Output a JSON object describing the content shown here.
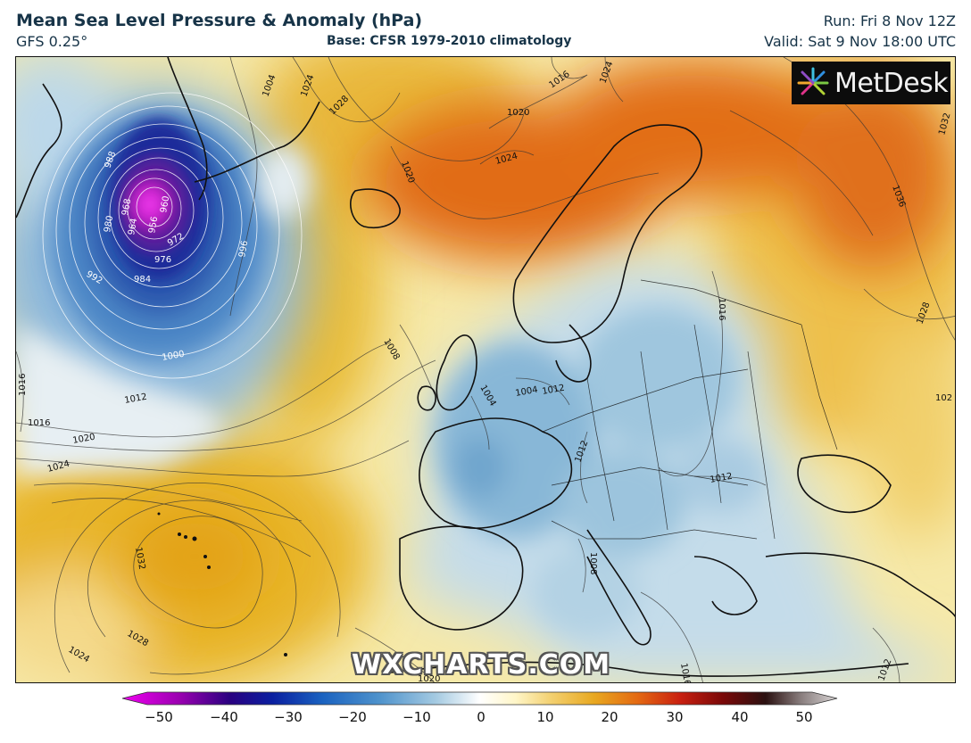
{
  "header": {
    "title": "Mean Sea Level Pressure & Anomaly (hPa)",
    "model": "GFS 0.25°",
    "base": "Base: CFSR 1979-2010 climatology",
    "run": "Run: Fri 8 Nov 12Z",
    "valid": "Valid: Sat 9 Nov 18:00 UTC"
  },
  "branding": {
    "logo_text": "MetDesk",
    "watermark": "WXCHARTS.COM"
  },
  "isobar_labels": {
    "l1004a": "1004",
    "l1024a": "1024",
    "l1028a": "1028",
    "l1016a": "1016",
    "l1024b": "1024",
    "l1032a": "1032",
    "l1020a": "1020",
    "l1024c": "1024",
    "l1020b": "1020",
    "l1036a": "1036",
    "l988": "988",
    "l968": "968",
    "l960": "960",
    "l956": "956",
    "l964": "964",
    "l980": "980",
    "l972": "972",
    "l976": "976",
    "l984": "984",
    "l992": "992",
    "l996": "996",
    "l1000": "1000",
    "l1008a": "1008",
    "l1012a": "1012",
    "l1016b": "1016",
    "l1016c": "1016",
    "l1020c": "1020",
    "l1024d": "1024",
    "l1004b": "1004",
    "l1004c": "1004",
    "l1012b": "1012",
    "l1012c": "1012",
    "l1016d": "1016",
    "l1028b": "1028",
    "l1032b": "1032",
    "l1028c": "1028",
    "l1024e": "1024",
    "l1008b": "1008",
    "l1012d": "1012",
    "l1020d": "1020",
    "l1012e": "1012",
    "l1016e": "1016",
    "l102": "102"
  },
  "colorbar": {
    "ticks": [
      "−50",
      "−40",
      "−30",
      "−20",
      "−10",
      "0",
      "10",
      "20",
      "30",
      "40",
      "50"
    ],
    "range": [
      -50,
      50
    ]
  }
}
